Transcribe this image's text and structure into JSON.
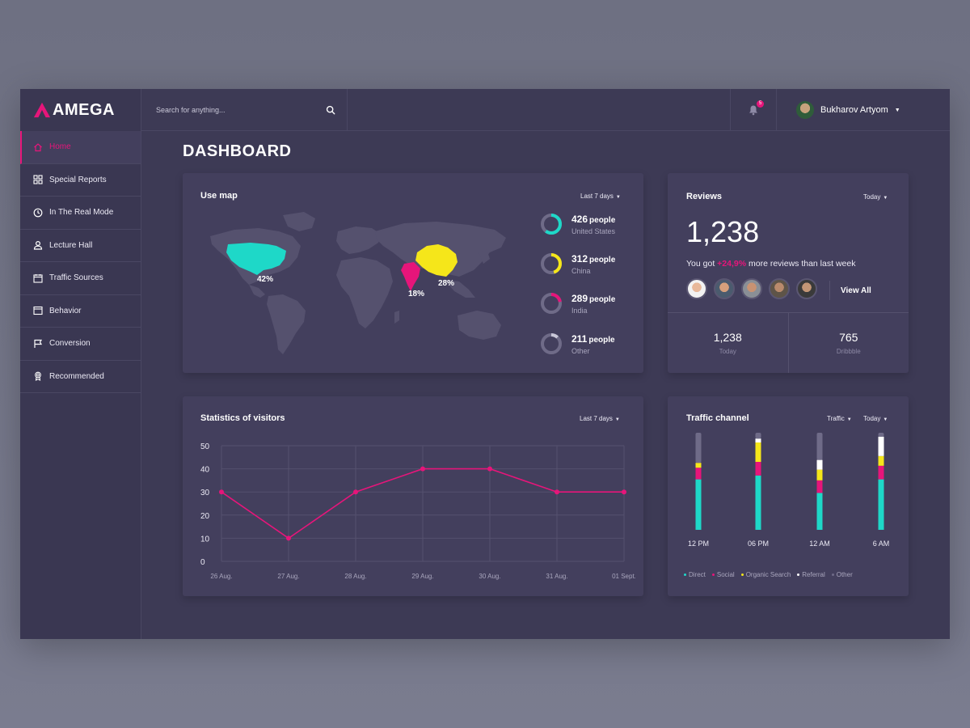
{
  "app": {
    "brand": "AMEGA"
  },
  "search": {
    "placeholder": "Search for anything..."
  },
  "notifications": {
    "count": "5"
  },
  "user": {
    "name": "Bukharov Artyom"
  },
  "sidebar": {
    "items": [
      {
        "label": "Home",
        "icon": "home-icon"
      },
      {
        "label": "Special Reports",
        "icon": "grid-icon"
      },
      {
        "label": "In The Real Mode",
        "icon": "clock-icon"
      },
      {
        "label": "Lecture Hall",
        "icon": "user-icon"
      },
      {
        "label": "Traffic Sources",
        "icon": "calendar-icon"
      },
      {
        "label": "Behavior",
        "icon": "window-icon"
      },
      {
        "label": "Conversion",
        "icon": "flag-icon"
      },
      {
        "label": "Recommended",
        "icon": "award-icon"
      }
    ]
  },
  "page": {
    "title": "DASHBOARD"
  },
  "use_map": {
    "title": "Use map",
    "period": "Last 7 days",
    "map_labels": {
      "us": "42%",
      "india": "18%",
      "china": "28%"
    },
    "stats": [
      {
        "num": "426",
        "unit": "people",
        "country": "United States",
        "fraction": 0.6,
        "color": "#1ed8c8"
      },
      {
        "num": "312",
        "unit": "people",
        "country": "China",
        "fraction": 0.45,
        "color": "#f5e61a"
      },
      {
        "num": "289",
        "unit": "people",
        "country": "India",
        "fraction": 0.22,
        "color": "#e6157a"
      },
      {
        "num": "211",
        "unit": "people",
        "country": "Other",
        "fraction": 0.12,
        "color": "#c9c7d8"
      }
    ]
  },
  "reviews": {
    "title": "Reviews",
    "period": "Today",
    "total": "1,238",
    "line_prefix": "You got",
    "line_pct": "+24,9%",
    "line_suffix": "more reviews than last week",
    "view_all": "View All",
    "bottom": [
      {
        "value": "1,238",
        "label": "Today"
      },
      {
        "value": "765",
        "label": "Dribbble"
      }
    ]
  },
  "statistics": {
    "title": "Statistics of visitors",
    "period": "Last 7 days"
  },
  "traffic": {
    "title": "Traffic channel",
    "filter": "Traffic",
    "period": "Today",
    "legend": [
      {
        "label": "Direct",
        "color": "#1ed8c8"
      },
      {
        "label": "Social",
        "color": "#e6157a"
      },
      {
        "label": "Organic Search",
        "color": "#f5e61a"
      },
      {
        "label": "Referral",
        "color": "#ffffff"
      },
      {
        "label": "Other",
        "color": "#6f6b88"
      }
    ]
  },
  "chart_data": [
    {
      "type": "line",
      "x": [
        "26 Aug.",
        "27 Aug.",
        "28 Aug.",
        "29 Aug.",
        "30 Aug.",
        "31 Aug.",
        "01 Sept."
      ],
      "series": [
        {
          "values": [
            30,
            10,
            30,
            40,
            40,
            30,
            30
          ]
        }
      ],
      "yticks": [
        0,
        10,
        20,
        30,
        40,
        50
      ],
      "ylim": [
        0,
        50
      ],
      "grid": true,
      "color": "#e6157a"
    },
    {
      "type": "bar",
      "categories": [
        "12 PM",
        "06 PM",
        "12 AM",
        "6 AM"
      ],
      "series": [
        {
          "name": "Direct",
          "values": [
            52,
            56,
            38,
            52
          ]
        },
        {
          "name": "Social",
          "values": [
            12,
            14,
            13,
            14
          ]
        },
        {
          "name": "Organic Search",
          "values": [
            5,
            20,
            11,
            10
          ]
        },
        {
          "name": "Referral",
          "values": [
            0,
            4,
            10,
            20
          ]
        },
        {
          "name": "Other",
          "values": [
            31,
            6,
            28,
            4
          ]
        }
      ],
      "ylim": [
        0,
        100
      ]
    }
  ]
}
